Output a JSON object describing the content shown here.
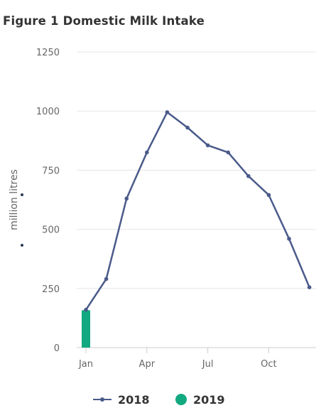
{
  "title": "Figure 1 Domestic Milk Intake",
  "chart_data": {
    "type": "line",
    "title": "Figure 1 Domestic Milk Intake",
    "ylabel": "million litres",
    "xlabel": "",
    "ylim": [
      0,
      1250
    ],
    "yticks": [
      0,
      250,
      500,
      750,
      1000,
      1250
    ],
    "x_tick_labels": [
      "Jan",
      "Apr",
      "Jul",
      "Oct"
    ],
    "x_tick_months": [
      0,
      3,
      6,
      9
    ],
    "grid": true,
    "legend_position": "bottom",
    "series": [
      {
        "name": "2018",
        "type": "line",
        "color": "#4a5a8a",
        "x": [
          "Jan",
          "Feb",
          "Mar",
          "Apr",
          "May",
          "Jun",
          "Jul",
          "Aug",
          "Sep",
          "Oct",
          "Nov",
          "Dec"
        ],
        "values": [
          160,
          290,
          630,
          825,
          995,
          930,
          855,
          825,
          725,
          645,
          460,
          255
        ]
      },
      {
        "name": "2019",
        "type": "bar",
        "color": "#12a980",
        "x": [
          "Jan"
        ],
        "values": [
          158
        ]
      }
    ]
  }
}
